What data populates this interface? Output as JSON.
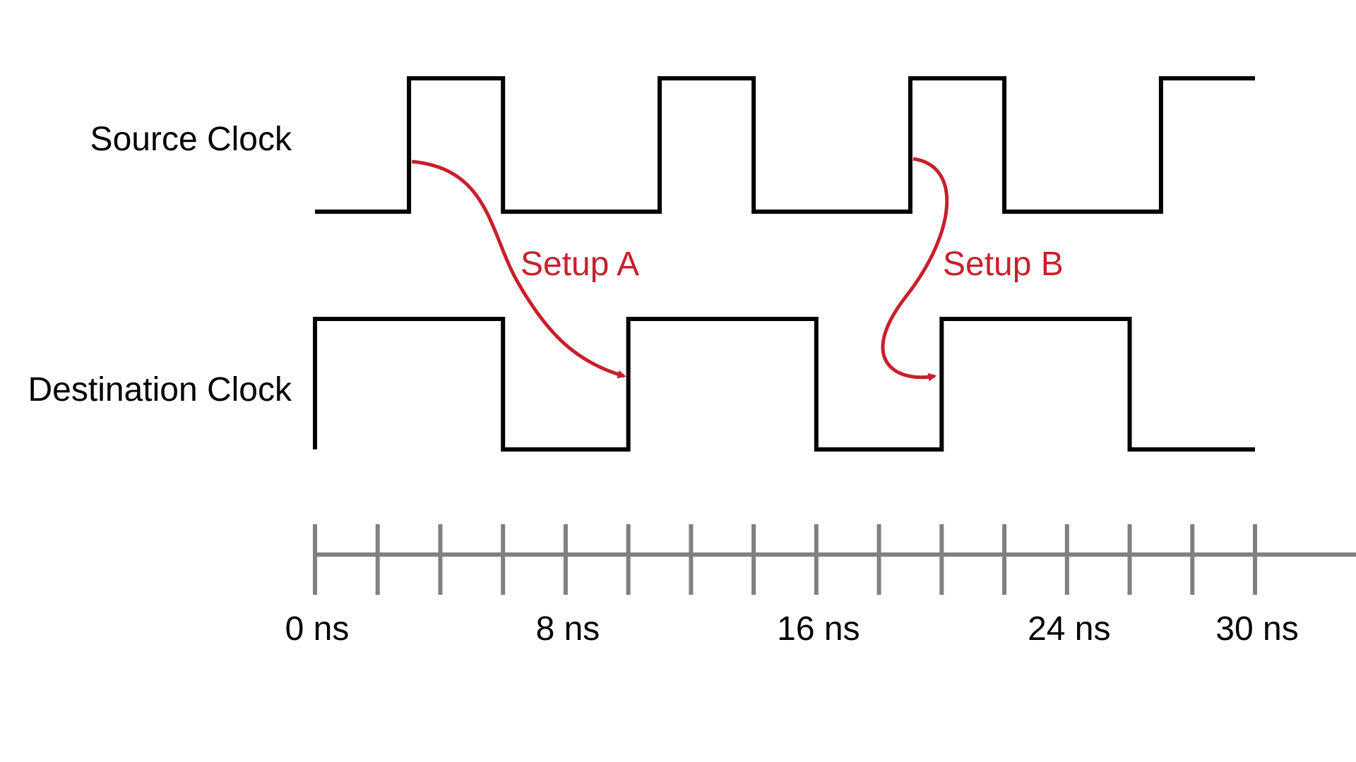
{
  "signals": {
    "source": {
      "label": "Source Clock",
      "edges_ns": [
        0,
        3,
        6,
        11,
        14,
        19,
        22,
        27,
        30
      ],
      "start_level": 0
    },
    "destination": {
      "label": "Destination Clock",
      "edges_ns": [
        0,
        6,
        10,
        16,
        20,
        26,
        30
      ],
      "start_level": 1
    }
  },
  "setups": [
    {
      "label": "Setup A",
      "from_ns": 3,
      "to_ns": 10
    },
    {
      "label": "Setup B",
      "from_ns": 19,
      "to_ns": 20
    }
  ],
  "time_axis": {
    "start_ns": 0,
    "end_ns": 30,
    "tick_step_ns": 2,
    "labels": [
      {
        "ns": 0,
        "text": "0 ns"
      },
      {
        "ns": 8,
        "text": "8 ns"
      },
      {
        "ns": 16,
        "text": "16 ns"
      },
      {
        "ns": 24,
        "text": "24 ns"
      },
      {
        "ns": 30,
        "text": "30 ns"
      }
    ]
  },
  "colors": {
    "waveform": "#000000",
    "setup_arrow": "#c8202c",
    "axis": "#808080"
  }
}
